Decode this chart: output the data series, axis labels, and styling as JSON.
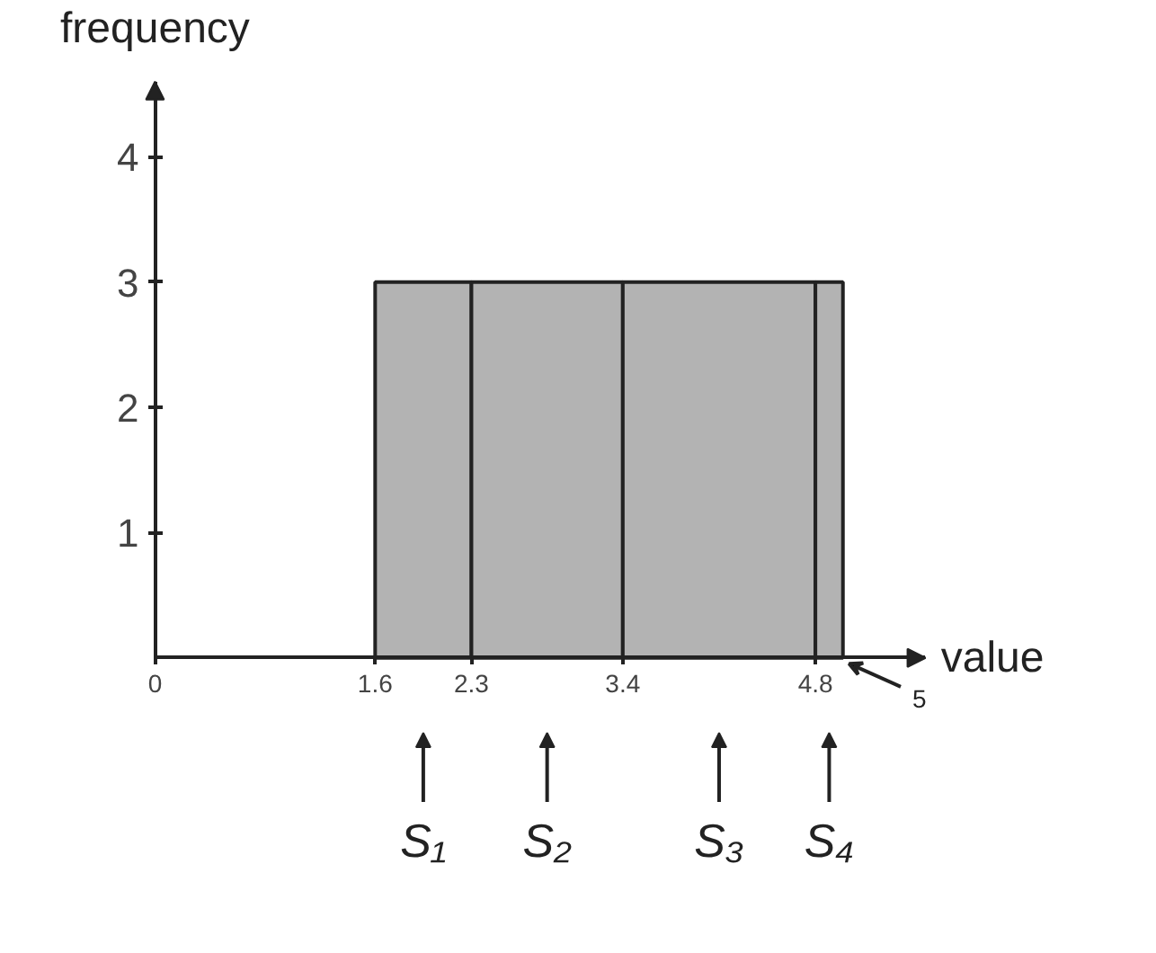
{
  "chart_data": {
    "type": "histogram",
    "bins": [
      1.6,
      2.3,
      3.4,
      4.8,
      5
    ],
    "values": [
      3,
      3,
      3,
      3
    ],
    "color": "#b3b3b3",
    "xlabel": "value",
    "ylabel": "frequency",
    "xlim": [
      0,
      5.6
    ],
    "ylim": [
      0,
      4.6
    ],
    "xticks": [
      0,
      1.6,
      2.3,
      3.4,
      4.8
    ],
    "yticks": [
      1,
      2,
      3,
      4
    ],
    "grid": false,
    "annotations": [
      {
        "text": "5",
        "x": 5,
        "y": 0
      },
      "S₁",
      "S₂",
      "S₃",
      "S₄"
    ]
  }
}
